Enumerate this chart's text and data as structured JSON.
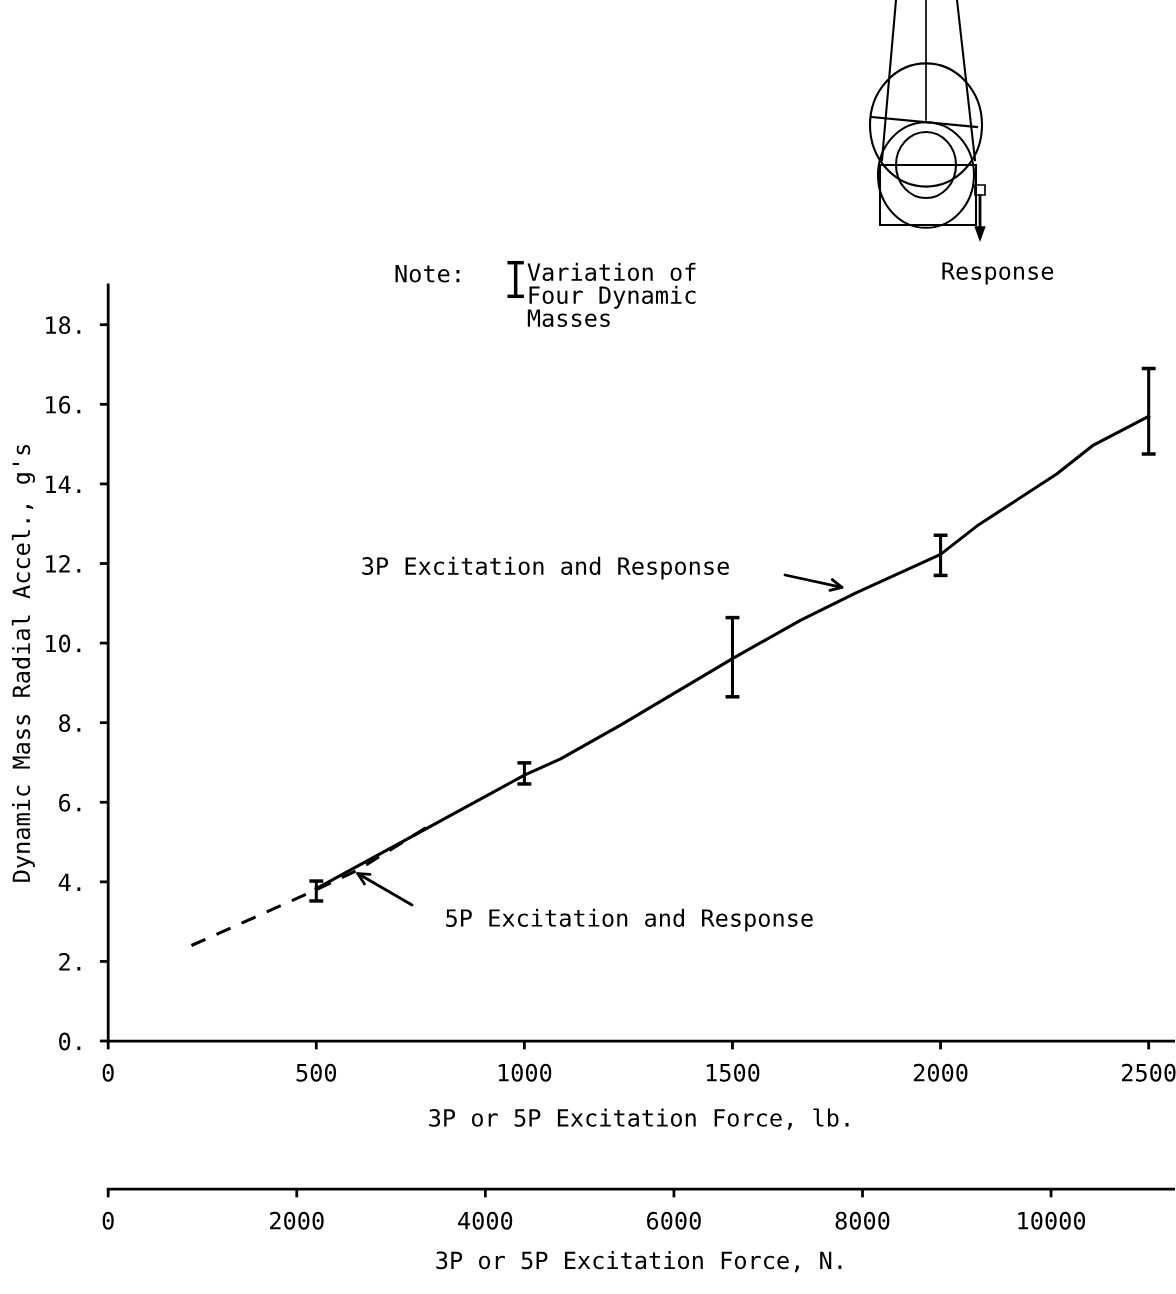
{
  "chart_data": {
    "type": "line",
    "xlabel": "3P or 5P Excitation Force, lb.",
    "ylabel": "Dynamic Mass Radial Accel., g's",
    "x2label": "3P or 5P Excitation Force, N.",
    "xlim": [
      0,
      2560
    ],
    "xticks": [
      0,
      500,
      1000,
      1500,
      2000,
      2500
    ],
    "x2lim": [
      0,
      11300
    ],
    "x2ticks": [
      0,
      2000,
      4000,
      6000,
      8000,
      10000
    ],
    "ylim": [
      0,
      19
    ],
    "yticks": [
      {
        "value": 0,
        "label": "0."
      },
      {
        "value": 2,
        "label": "2."
      },
      {
        "value": 4,
        "label": "4."
      },
      {
        "value": 6,
        "label": "6."
      },
      {
        "value": 8,
        "label": "8."
      },
      {
        "value": 10,
        "label": "10."
      },
      {
        "value": 12,
        "label": "12."
      },
      {
        "value": 14,
        "label": "14."
      },
      {
        "value": 16,
        "label": "16."
      },
      {
        "value": 18,
        "label": "18."
      }
    ],
    "grid": false,
    "legend": false,
    "marker": "none",
    "series": [
      {
        "color": "#000000",
        "line_style": "solid",
        "x": [
          500,
          1000,
          1087,
          1231,
          1500,
          1663,
          1798,
          2000,
          2087,
          2279,
          2365,
          2500
        ],
        "values": [
          3.83,
          6.68,
          7.09,
          7.94,
          9.61,
          10.57,
          11.27,
          12.23,
          12.94,
          14.25,
          14.96,
          15.7
        ],
        "errors": [
          [
            3.52,
            4.02
          ],
          [
            6.46,
            6.99
          ],
          null,
          null,
          [
            8.65,
            10.64
          ],
          null,
          null,
          [
            11.7,
            12.71
          ],
          null,
          null,
          null,
          [
            14.75,
            16.9
          ]
        ]
      },
      {
        "color": "#000000",
        "line_style": "dashed",
        "x": [
          200,
          500,
          600,
          770
        ],
        "values": [
          2.4,
          3.8,
          4.3,
          5.4
        ]
      }
    ],
    "annotations": [
      "3P Excitation and Response",
      "5P Excitation and Response",
      "Note:",
      "Variation of\nFour Dynamic\nMasses",
      "Response"
    ]
  }
}
